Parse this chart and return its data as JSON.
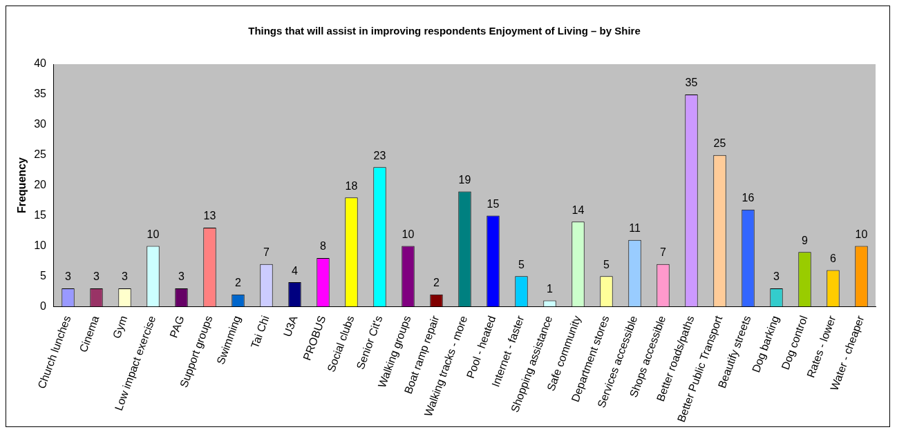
{
  "chart_data": {
    "type": "bar",
    "title": "Things that will assist in improving respondents Enjoyment of Living – by Shire",
    "ylabel": "Frequency",
    "categories": [
      "Church lunches",
      "Cinema",
      "Gym",
      "Low impact exercise",
      "PAG",
      "Support groups",
      "Swimming",
      "Tai Chi",
      "U3A",
      "PROBUS",
      "Social clubs",
      "Senior Cit's",
      "Walking groups",
      "Boat ramp repair",
      "Walking tracks - more",
      "Pool - heated",
      "Internet - faster",
      "Shopping assistance",
      "Safe community",
      "Department stores",
      "Services accessible",
      "Shops accessible",
      "Better roads/paths",
      "Better Public Transport",
      "Beautify streets",
      "Dog barking",
      "Dog control",
      "Rates - lower",
      "Water - cheaper"
    ],
    "values": [
      3,
      3,
      3,
      10,
      3,
      13,
      2,
      7,
      4,
      8,
      18,
      23,
      10,
      2,
      19,
      15,
      5,
      1,
      14,
      5,
      11,
      7,
      35,
      25,
      16,
      3,
      9,
      6,
      10
    ],
    "colors": [
      "#9999ff",
      "#993366",
      "#ffffcc",
      "#ccffff",
      "#660066",
      "#ff8080",
      "#0066cc",
      "#ccccff",
      "#000080",
      "#ff00ff",
      "#ffff00",
      "#00ffff",
      "#800080",
      "#800000",
      "#008080",
      "#0000ff",
      "#00ccff",
      "#ccffff",
      "#ccffcc",
      "#ffff99",
      "#99ccff",
      "#ff99cc",
      "#cc99ff",
      "#ffcc99",
      "#3366ff",
      "#33cccc",
      "#99cc00",
      "#ffcc00",
      "#ff9900"
    ],
    "ylim": [
      0,
      40
    ],
    "yticks": [
      0,
      5,
      10,
      15,
      20,
      25,
      30,
      35,
      40
    ],
    "grid": false,
    "legend": false,
    "data_labels": true
  }
}
